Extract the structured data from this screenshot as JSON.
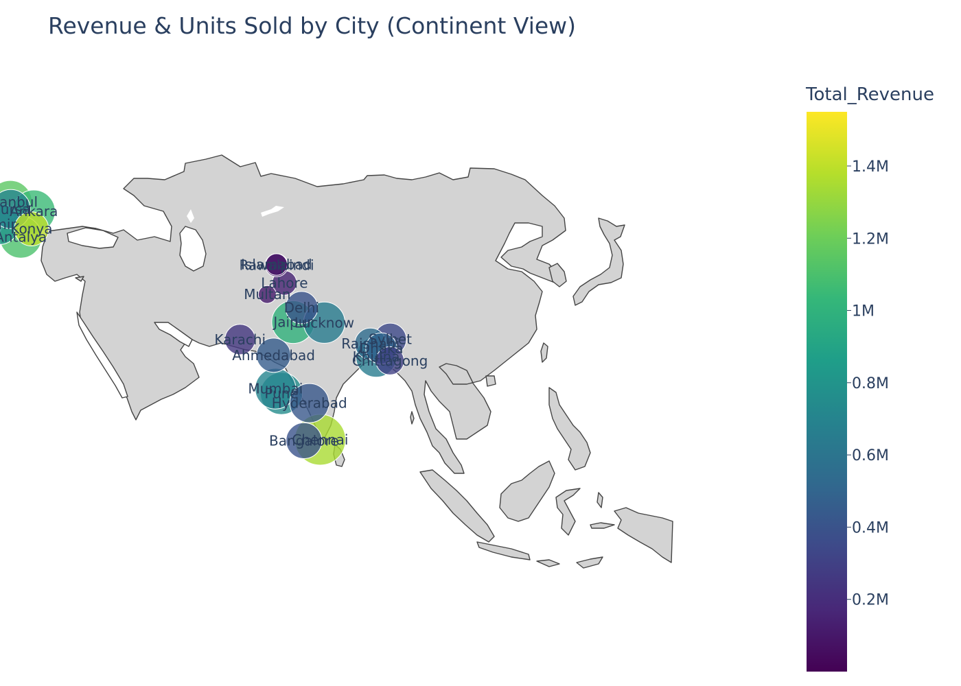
{
  "title": "Revenue & Units Sold by City (Continent View)",
  "colorbar": {
    "title": "Total_Revenue",
    "colorscale": "Viridis",
    "range": [
      0,
      1550000
    ],
    "ticks": [
      {
        "value": 200000,
        "label": "0.2M"
      },
      {
        "value": 400000,
        "label": "0.4M"
      },
      {
        "value": 600000,
        "label": "0.6M"
      },
      {
        "value": 800000,
        "label": "0.8M"
      },
      {
        "value": 1000000,
        "label": "1M"
      },
      {
        "value": 1200000,
        "label": "1.2M"
      },
      {
        "value": 1400000,
        "label": "1.4M"
      }
    ]
  },
  "map": {
    "scope": "asia",
    "land_color": "#d3d3d3",
    "border_color": "#444444",
    "marker_border_color": "#ffffff"
  },
  "cities": [
    {
      "name": "Istanbul",
      "lon": 28.98,
      "lat": 41.01,
      "revenue": 1150000,
      "units": 1400
    },
    {
      "name": "Bursa",
      "lon": 29.06,
      "lat": 40.19,
      "revenue": 700000,
      "units": 1100
    },
    {
      "name": "Ankara",
      "lon": 32.86,
      "lat": 39.93,
      "revenue": 1050000,
      "units": 1350
    },
    {
      "name": "Konya",
      "lon": 32.49,
      "lat": 37.87,
      "revenue": 1400000,
      "units": 800
    },
    {
      "name": "Izmir",
      "lon": 27.14,
      "lat": 38.42,
      "revenue": 800000,
      "units": 1200
    },
    {
      "name": "Antalya",
      "lon": 30.71,
      "lat": 36.9,
      "revenue": 1100000,
      "units": 1300
    },
    {
      "name": "Islamabad",
      "lon": 73.05,
      "lat": 33.68,
      "revenue": 80000,
      "units": 250
    },
    {
      "name": "Rawalpindi",
      "lon": 73.07,
      "lat": 33.6,
      "revenue": 100000,
      "units": 300
    },
    {
      "name": "Lahore",
      "lon": 74.36,
      "lat": 31.52,
      "revenue": 150000,
      "units": 350
    },
    {
      "name": "Multan",
      "lon": 71.52,
      "lat": 30.16,
      "revenue": 120000,
      "units": 150
    },
    {
      "name": "Karachi",
      "lon": 67.01,
      "lat": 24.86,
      "revenue": 250000,
      "units": 600
    },
    {
      "name": "Delhi",
      "lon": 77.21,
      "lat": 28.61,
      "revenue": 400000,
      "units": 700
    },
    {
      "name": "Jaipur",
      "lon": 75.79,
      "lat": 26.91,
      "revenue": 1000000,
      "units": 1350
    },
    {
      "name": "Lucknow",
      "lon": 80.95,
      "lat": 26.85,
      "revenue": 650000,
      "units": 1250
    },
    {
      "name": "Ahmedabad",
      "lon": 72.57,
      "lat": 23.02,
      "revenue": 450000,
      "units": 800
    },
    {
      "name": "Rajshahi",
      "lon": 88.6,
      "lat": 24.37,
      "revenue": 550000,
      "units": 650
    },
    {
      "name": "Sylhet",
      "lon": 91.87,
      "lat": 24.89,
      "revenue": 350000,
      "units": 700
    },
    {
      "name": "Dhaka",
      "lon": 90.41,
      "lat": 23.81,
      "revenue": 500000,
      "units": 650
    },
    {
      "name": "Khulna",
      "lon": 89.56,
      "lat": 22.82,
      "revenue": 650000,
      "units": 1200
    },
    {
      "name": "Chittagong",
      "lon": 91.83,
      "lat": 22.36,
      "revenue": 300000,
      "units": 500
    },
    {
      "name": "Mumbai",
      "lon": 72.88,
      "lat": 19.08,
      "revenue": 700000,
      "units": 1200
    },
    {
      "name": "Pune",
      "lon": 73.86,
      "lat": 18.52,
      "revenue": 750000,
      "units": 1300
    },
    {
      "name": "Hyderabad",
      "lon": 78.49,
      "lat": 17.39,
      "revenue": 420000,
      "units": 1100
    },
    {
      "name": "Bangalore",
      "lon": 77.59,
      "lat": 12.97,
      "revenue": 400000,
      "units": 900
    },
    {
      "name": "Chennai",
      "lon": 80.27,
      "lat": 13.08,
      "revenue": 1350000,
      "units": 2000
    }
  ]
}
